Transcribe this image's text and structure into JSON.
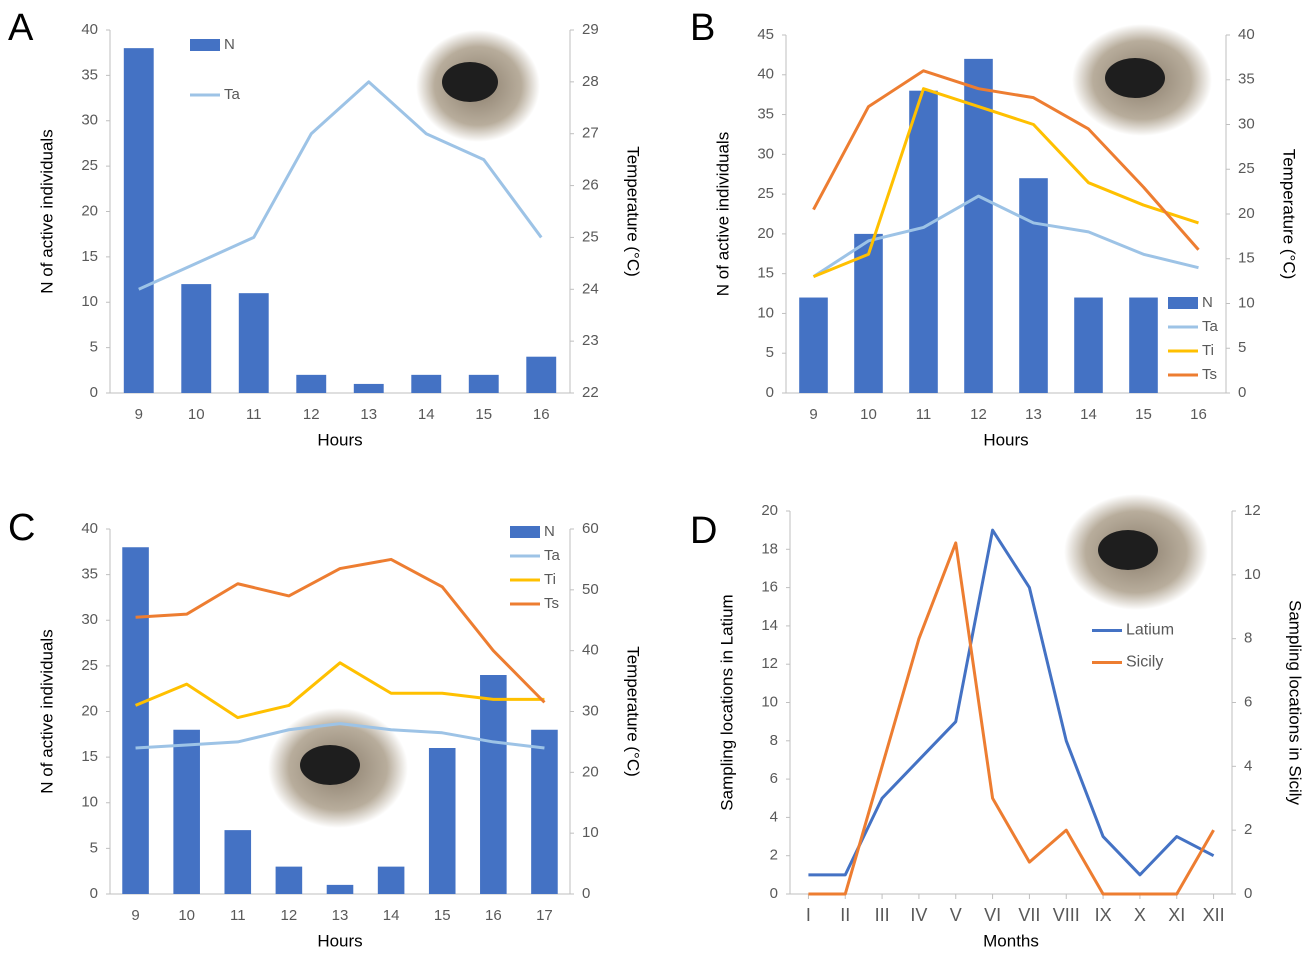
{
  "chart_data": [
    {
      "type": "bar",
      "label": "A",
      "xlabel": "Hours",
      "ylabel": "N of active individuals",
      "y2label": "Temperature (°C)",
      "categories": [
        "9",
        "10",
        "11",
        "12",
        "13",
        "14",
        "15",
        "16"
      ],
      "ylim": [
        0,
        40
      ],
      "yticks": [
        0,
        5,
        10,
        15,
        20,
        25,
        30,
        35,
        40
      ],
      "y2lim": [
        22,
        29
      ],
      "y2ticks": [
        22,
        23,
        24,
        25,
        26,
        27,
        28,
        29
      ],
      "legend": "upper left",
      "series": [
        {
          "name": "N",
          "type": "bar",
          "color": "#4472c4",
          "values": [
            38,
            12,
            11,
            2,
            1,
            2,
            2,
            4
          ]
        },
        {
          "name": "Ta",
          "type": "line",
          "axis": "y2",
          "color": "#9dc3e6",
          "values": [
            24,
            24.5,
            25,
            27,
            28,
            27,
            26.5,
            25
          ]
        }
      ]
    },
    {
      "type": "bar",
      "label": "B",
      "xlabel": "Hours",
      "ylabel": "N of active individuals",
      "y2label": "Temperature (°C)",
      "categories": [
        "9",
        "10",
        "11",
        "12",
        "13",
        "14",
        "15",
        "16"
      ],
      "ylim": [
        0,
        45
      ],
      "yticks": [
        0,
        5,
        10,
        15,
        20,
        25,
        30,
        35,
        40,
        45
      ],
      "y2lim": [
        0,
        40
      ],
      "y2ticks": [
        0,
        5,
        10,
        15,
        20,
        25,
        30,
        35,
        40
      ],
      "legend": "lower right",
      "series": [
        {
          "name": "N",
          "type": "bar",
          "color": "#4472c4",
          "values": [
            12,
            20,
            38,
            42,
            27,
            12,
            12,
            0
          ]
        },
        {
          "name": "Ta",
          "type": "line",
          "axis": "y2",
          "color": "#9dc3e6",
          "values": [
            13,
            17,
            18.5,
            22,
            19,
            18,
            15.5,
            14
          ]
        },
        {
          "name": "Ti",
          "type": "line",
          "axis": "y2",
          "color": "#ffc000",
          "values": [
            13,
            15.5,
            34,
            32,
            30,
            23.5,
            21,
            19
          ]
        },
        {
          "name": "Ts",
          "type": "line",
          "axis": "y2",
          "color": "#ed7d31",
          "values": [
            20.5,
            32,
            36,
            34,
            33,
            29.5,
            23,
            16
          ]
        }
      ]
    },
    {
      "type": "bar",
      "label": "C",
      "xlabel": "Hours",
      "ylabel": "N of active individuals",
      "y2label": "Temperature (°C)",
      "categories": [
        "9",
        "10",
        "11",
        "12",
        "13",
        "14",
        "15",
        "16",
        "17"
      ],
      "ylim": [
        0,
        40
      ],
      "yticks": [
        0,
        5,
        10,
        15,
        20,
        25,
        30,
        35,
        40
      ],
      "y2lim": [
        0,
        60
      ],
      "y2ticks": [
        0,
        10,
        20,
        30,
        40,
        50,
        60
      ],
      "legend": "upper right",
      "series": [
        {
          "name": "N",
          "type": "bar",
          "color": "#4472c4",
          "values": [
            38,
            18,
            7,
            3,
            1,
            3,
            16,
            24,
            18
          ]
        },
        {
          "name": "Ta",
          "type": "line",
          "axis": "y2",
          "color": "#9dc3e6",
          "values": [
            24,
            24.5,
            25,
            27,
            28,
            27,
            26.5,
            25,
            24
          ]
        },
        {
          "name": "Ti",
          "type": "line",
          "axis": "y2",
          "color": "#ffc000",
          "values": [
            31,
            34.5,
            29,
            31,
            38,
            33,
            33,
            32,
            32
          ]
        },
        {
          "name": "Ts",
          "type": "line",
          "axis": "y2",
          "color": "#ed7d31",
          "values": [
            45.5,
            46,
            51,
            49,
            53.5,
            55,
            50.5,
            40,
            31.5
          ]
        }
      ]
    },
    {
      "type": "line",
      "label": "D",
      "xlabel": "Months",
      "ylabel": "Sampling locations in Latium",
      "y2label": "Sampling locations in Sicily",
      "categories": [
        "I",
        "II",
        "III",
        "IV",
        "V",
        "VI",
        "VII",
        "VIII",
        "IX",
        "X",
        "XI",
        "XII"
      ],
      "ylim": [
        0,
        20
      ],
      "yticks": [
        0,
        2,
        4,
        6,
        8,
        10,
        12,
        14,
        16,
        18,
        20
      ],
      "y2lim": [
        0,
        12
      ],
      "y2ticks": [
        0,
        2,
        4,
        6,
        8,
        10,
        12
      ],
      "legend": "center right",
      "series": [
        {
          "name": "Latium",
          "type": "line",
          "color": "#4472c4",
          "values": [
            1,
            1,
            5,
            7,
            9,
            19,
            16,
            8,
            3,
            1,
            3,
            2
          ]
        },
        {
          "name": "Sicily",
          "type": "line",
          "axis": "y2",
          "color": "#ed7d31",
          "values": [
            0,
            0,
            4,
            8,
            11,
            3,
            1,
            2,
            0,
            0,
            0,
            2
          ]
        }
      ]
    }
  ]
}
